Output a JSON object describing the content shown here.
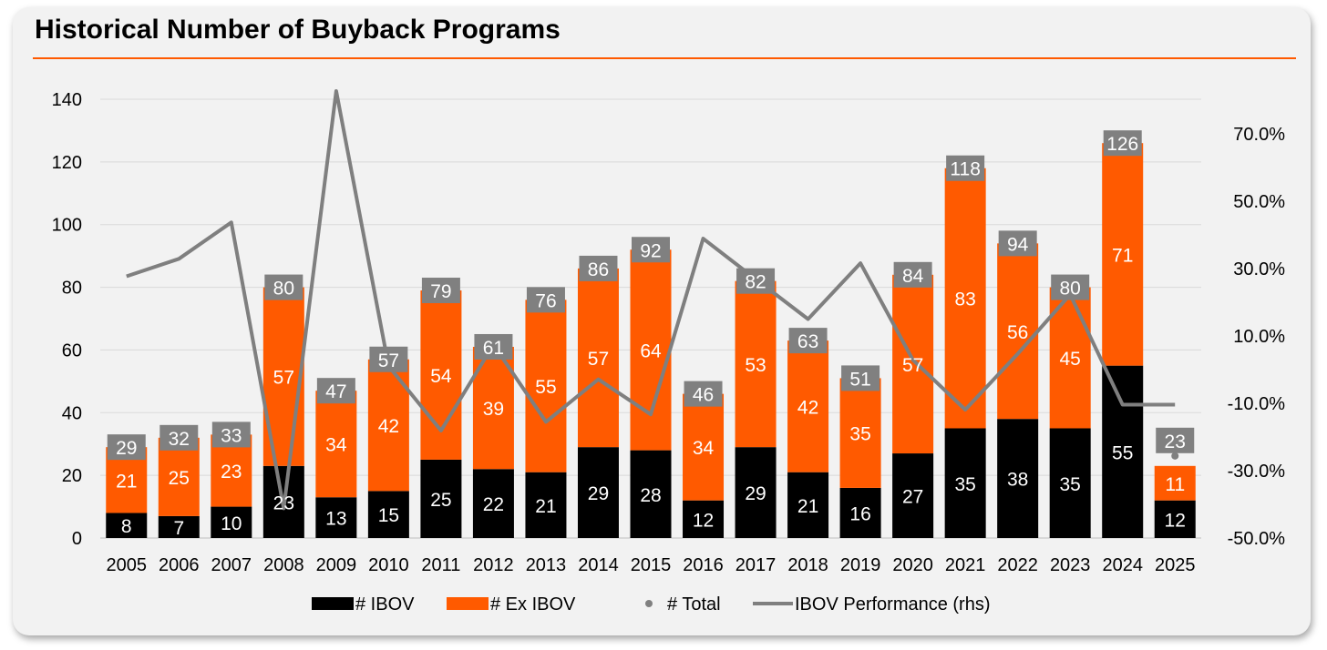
{
  "chart_data": {
    "type": "bar",
    "title": "Historical Number of Buyback Programs",
    "categories": [
      "2005",
      "2006",
      "2007",
      "2008",
      "2009",
      "2010",
      "2011",
      "2012",
      "2013",
      "2014",
      "2015",
      "2016",
      "2017",
      "2018",
      "2019",
      "2020",
      "2021",
      "2022",
      "2023",
      "2024",
      "2025"
    ],
    "series": [
      {
        "name": "# IBOV",
        "kind": "stacked-bar",
        "color": "#000000",
        "values": [
          8,
          7,
          10,
          23,
          13,
          15,
          25,
          22,
          21,
          29,
          28,
          12,
          29,
          21,
          16,
          27,
          35,
          38,
          35,
          55,
          12
        ]
      },
      {
        "name": "# Ex IBOV",
        "kind": "stacked-bar",
        "color": "#ff5a00",
        "values": [
          21,
          25,
          23,
          57,
          34,
          42,
          54,
          39,
          55,
          57,
          64,
          34,
          53,
          42,
          35,
          57,
          83,
          56,
          45,
          71,
          11
        ]
      },
      {
        "name": "# Total",
        "kind": "marker",
        "color": "#808080",
        "values": [
          29,
          32,
          33,
          80,
          47,
          57,
          79,
          61,
          76,
          86,
          92,
          46,
          82,
          63,
          51,
          84,
          118,
          94,
          80,
          126,
          23
        ]
      },
      {
        "name": "IBOV Performance (rhs)",
        "kind": "line",
        "axis": "right",
        "color": "#7f7f7f",
        "values": [
          27.7,
          32.9,
          43.7,
          -41.2,
          82.7,
          1.0,
          -18.1,
          7.4,
          -15.5,
          -2.9,
          -13.3,
          38.9,
          26.9,
          15.0,
          31.6,
          2.9,
          -11.9,
          4.7,
          22.3,
          -10.4,
          -10.4
        ]
      }
    ],
    "y_left": {
      "min": 0,
      "max": 140,
      "ticks": [
        "0",
        "20",
        "40",
        "60",
        "80",
        "100",
        "120",
        "140"
      ]
    },
    "y_right": {
      "min": -50,
      "max": 80,
      "ticks": [
        "-50.0%",
        "-30.0%",
        "-10.0%",
        "10.0%",
        "30.0%",
        "50.0%",
        "70.0%"
      ],
      "tick_values": [
        -50,
        -30,
        -10,
        10,
        30,
        50,
        70
      ]
    },
    "grid": "horizontal",
    "legend_position": "bottom",
    "xlabel": "",
    "ylabel": ""
  }
}
